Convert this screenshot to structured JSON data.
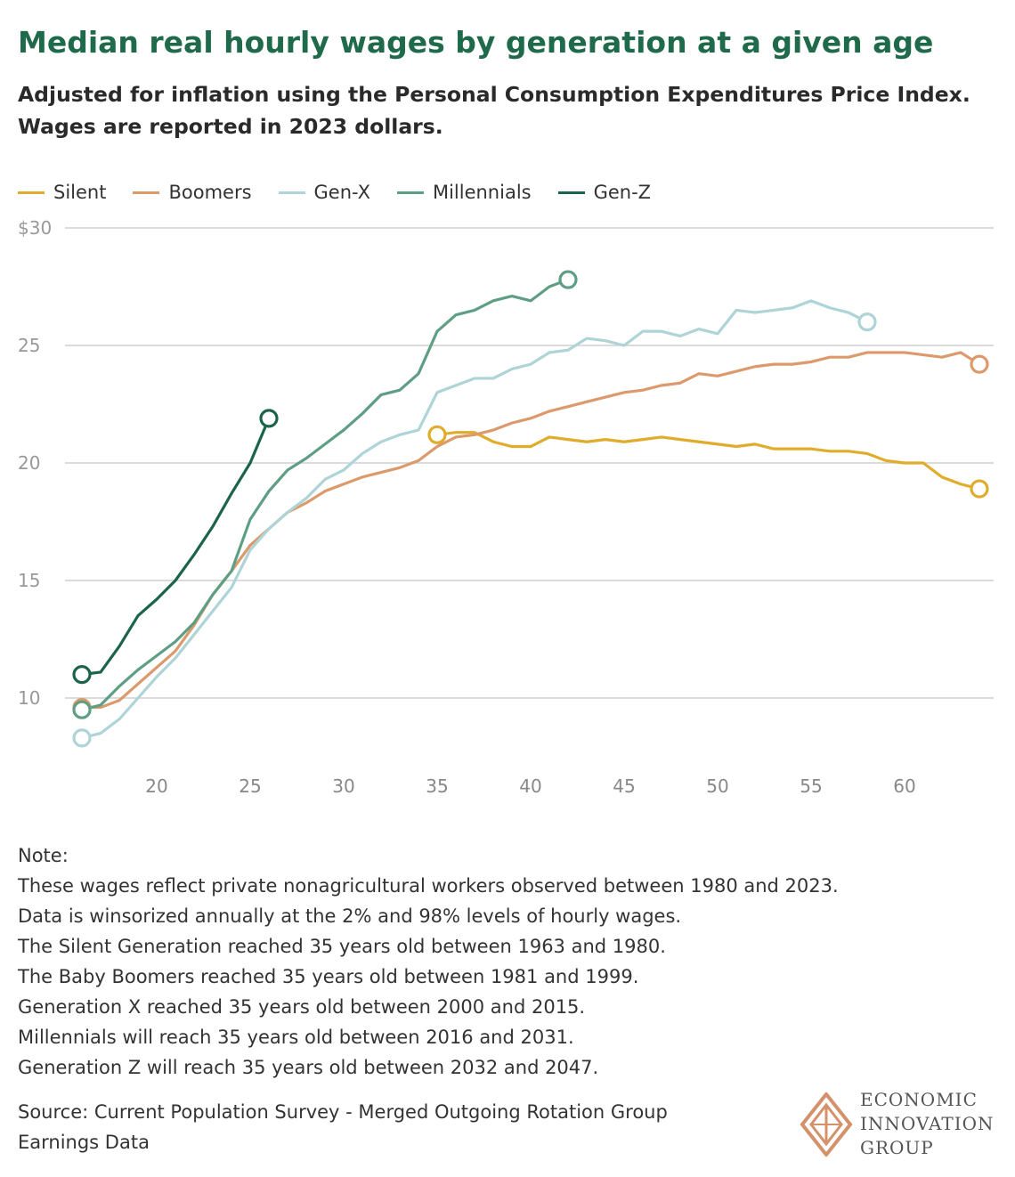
{
  "title": "Median real hourly wages by generation at a given age",
  "subtitle": "Adjusted for inflation using the Personal Consumption Expenditures Price Index. Wages are reported in 2023 dollars.",
  "notes": [
    "Note:",
    "These wages reflect private nonagricultural workers observed between 1980 and 2023.",
    "Data is winsorized annually at the 2% and 98% levels of hourly wages.",
    "The Silent Generation reached 35 years old between 1963 and 1980.",
    "The Baby Boomers reached 35 years old between 1981 and 1999.",
    "Generation X reached 35 years old between 2000 and 2015.",
    "Millennials will reach 35 years old between 2016 and 2031.",
    "Generation Z will reach 35 years old between 2032 and 2047."
  ],
  "source": "Source: Current Population Survey - Merged Outgoing Rotation Group Earnings Data",
  "logo": {
    "lines": [
      "ECONOMIC",
      "INNOVATION",
      "GROUP"
    ],
    "color": "#d4916a"
  },
  "chart_data": {
    "type": "line",
    "xlabel": "",
    "ylabel": "",
    "xlim": [
      16,
      65
    ],
    "ylim": [
      8,
      30
    ],
    "xticks": [
      20,
      25,
      30,
      35,
      40,
      45,
      50,
      55,
      60
    ],
    "yticks": [
      {
        "v": 30,
        "label": "$30"
      },
      {
        "v": 25,
        "label": "25"
      },
      {
        "v": 20,
        "label": "20"
      },
      {
        "v": 15,
        "label": "15"
      },
      {
        "v": 10,
        "label": "10"
      }
    ],
    "grid": true,
    "legend_position": "top-left",
    "series": [
      {
        "name": "Silent",
        "color": "#e0ac2b",
        "start": 35,
        "values": [
          21.2,
          21.3,
          21.3,
          20.9,
          20.7,
          20.7,
          21.1,
          21.0,
          20.9,
          21.0,
          20.9,
          21.0,
          21.1,
          21.0,
          20.9,
          20.8,
          20.7,
          20.8,
          20.6,
          20.6,
          20.6,
          20.5,
          20.5,
          20.4,
          20.1,
          20.0,
          20.0,
          19.4,
          19.1,
          18.9
        ]
      },
      {
        "name": "Boomers",
        "color": "#dc9a6c",
        "start": 16,
        "values": [
          9.6,
          9.6,
          9.9,
          10.6,
          11.3,
          12.0,
          13.1,
          14.4,
          15.4,
          16.5,
          17.2,
          17.9,
          18.3,
          18.8,
          19.1,
          19.4,
          19.6,
          19.8,
          20.1,
          20.7,
          21.1,
          21.2,
          21.4,
          21.7,
          21.9,
          22.2,
          22.4,
          22.6,
          22.8,
          23.0,
          23.1,
          23.3,
          23.4,
          23.8,
          23.7,
          23.9,
          24.1,
          24.2,
          24.2,
          24.3,
          24.5,
          24.5,
          24.7,
          24.7,
          24.7,
          24.6,
          24.5,
          24.7,
          24.2
        ]
      },
      {
        "name": "Gen-X",
        "color": "#aed4d8",
        "start": 16,
        "values": [
          8.3,
          8.5,
          9.1,
          10.0,
          10.9,
          11.7,
          12.7,
          13.7,
          14.7,
          16.3,
          17.2,
          17.9,
          18.5,
          19.3,
          19.7,
          20.4,
          20.9,
          21.2,
          21.4,
          23.0,
          23.3,
          23.6,
          23.6,
          24.0,
          24.2,
          24.7,
          24.8,
          25.3,
          25.2,
          25.0,
          25.6,
          25.6,
          25.4,
          25.7,
          25.5,
          26.5,
          26.4,
          26.5,
          26.6,
          26.9,
          26.6,
          26.4,
          26.0
        ]
      },
      {
        "name": "Millennials",
        "color": "#5e9e84",
        "start": 16,
        "values": [
          9.5,
          9.7,
          10.5,
          11.2,
          11.8,
          12.4,
          13.2,
          14.4,
          15.4,
          17.6,
          18.8,
          19.7,
          20.2,
          20.8,
          21.4,
          22.1,
          22.9,
          23.1,
          23.8,
          25.6,
          26.3,
          26.5,
          26.9,
          27.1,
          26.9,
          27.5,
          27.8
        ]
      },
      {
        "name": "Gen-Z",
        "color": "#1b6449",
        "start": 16,
        "values": [
          11.0,
          11.1,
          12.2,
          13.5,
          14.2,
          15.0,
          16.1,
          17.3,
          18.7,
          20.0,
          21.9
        ]
      }
    ]
  }
}
